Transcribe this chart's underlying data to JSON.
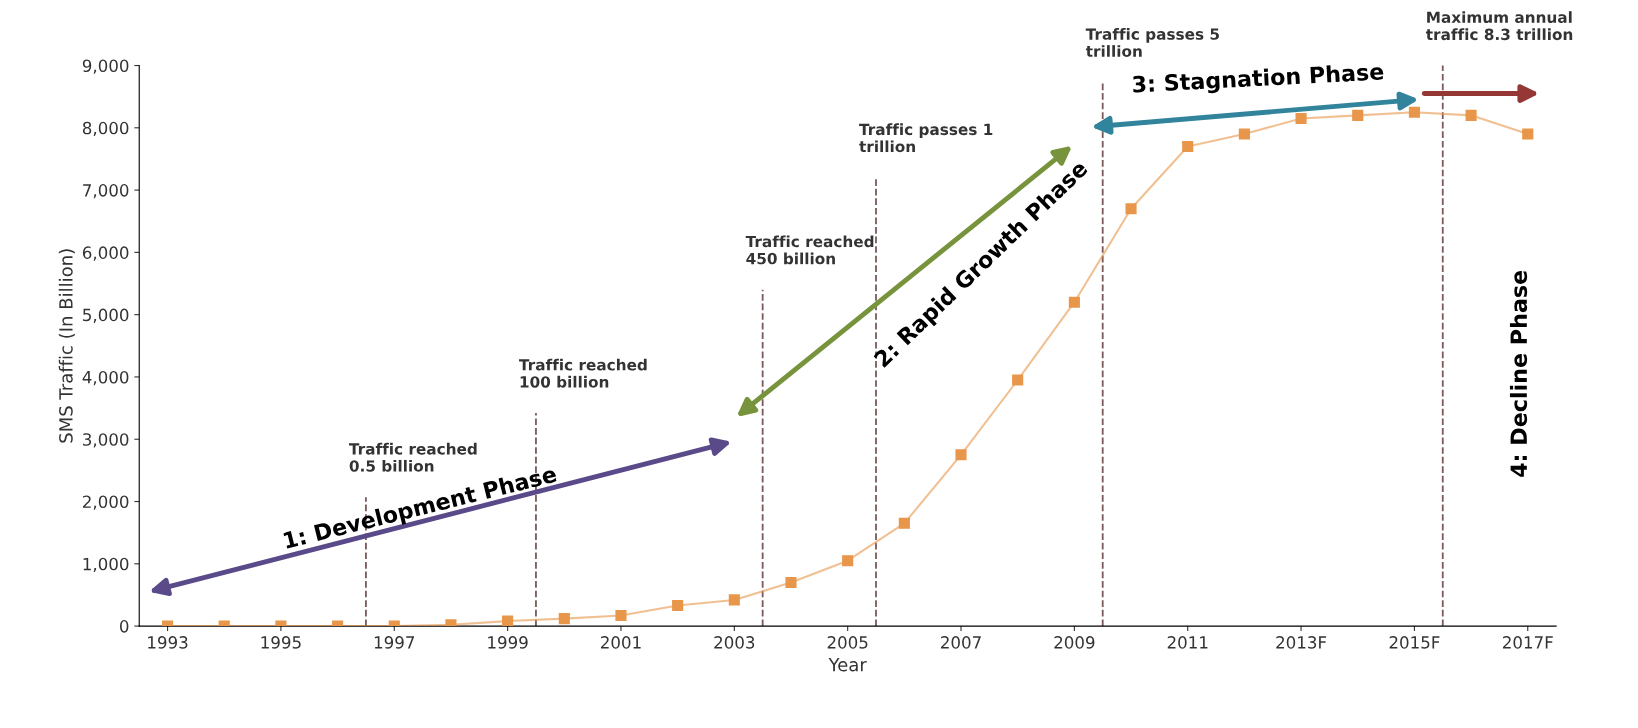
{
  "chart_data": {
    "type": "line",
    "xlabel": "Year",
    "ylabel": "SMS Traffic (In Billion)",
    "x": [
      1993,
      1994,
      1995,
      1996,
      1997,
      1998,
      1999,
      2000,
      2001,
      2002,
      2003,
      2004,
      2005,
      2006,
      2007,
      2008,
      2009,
      2010,
      2011,
      2012,
      2013,
      2014,
      2015,
      2016,
      2017
    ],
    "series": [
      {
        "color": "#e8964a",
        "values": [
          0,
          0,
          0,
          0,
          0,
          20,
          80,
          120,
          170,
          330,
          420,
          700,
          1050,
          1650,
          2750,
          3950,
          5200,
          6700,
          7700,
          7900,
          8150,
          8200,
          8250,
          8200,
          7900
        ]
      }
    ],
    "marker": "square",
    "line_style": "solid",
    "grid": false,
    "legend": false,
    "xlim": [
      1992.5,
      2017.5
    ],
    "xticks": [
      1993,
      1995,
      1997,
      1999,
      2001,
      2003,
      2005,
      2007,
      2009,
      2011,
      {
        "value": 2013,
        "label": "2013F"
      },
      {
        "value": 2015,
        "label": "2015F"
      },
      {
        "value": 2017,
        "label": "2017F"
      }
    ],
    "ylim": [
      0,
      9000
    ],
    "yticks": [
      0,
      {
        "value": 1000,
        "label": "1,000"
      },
      {
        "value": 2000,
        "label": "2,000"
      },
      {
        "value": 3000,
        "label": "3,000"
      },
      {
        "value": 4000,
        "label": "4,000"
      },
      {
        "value": 5000,
        "label": "5,000"
      },
      {
        "value": 6000,
        "label": "6,000"
      },
      {
        "value": 7000,
        "label": "7,000"
      },
      {
        "value": 8000,
        "label": "8,000"
      },
      {
        "value": 9000,
        "label": "9,000"
      }
    ],
    "ref_lines": [
      {
        "axis": "x",
        "value": 1996.5,
        "label": "Traffic reached\n0.5 billion",
        "color": "#7a5a5a",
        "line_style": "dashed"
      },
      {
        "axis": "x",
        "value": 1999.5,
        "label": "Traffic reached\n100 billion",
        "color": "#7a5a5a",
        "line_style": "dashed"
      },
      {
        "axis": "x",
        "value": 2003.5,
        "label": "Traffic reached\n450 billion",
        "color": "#7a5a5a",
        "line_style": "dashed"
      },
      {
        "axis": "x",
        "value": 2005.5,
        "label": "Traffic passes 1\ntrillion",
        "color": "#7a5a5a",
        "line_style": "dashed"
      },
      {
        "axis": "x",
        "value": 2009.5,
        "label": "Traffic passes 5\ntrillion",
        "color": "#7a5a5a",
        "line_style": "dashed"
      },
      {
        "axis": "x",
        "value": 2015.5,
        "label": "Maximum annual\ntraffic 8.3 trillion",
        "color": "#7a5a5a",
        "line_style": "dashed"
      }
    ],
    "annotations": [
      "1: Development Phase",
      "2: Rapid Growth Phase",
      "3: Stagnation Phase",
      "4: Decline Phase"
    ]
  }
}
